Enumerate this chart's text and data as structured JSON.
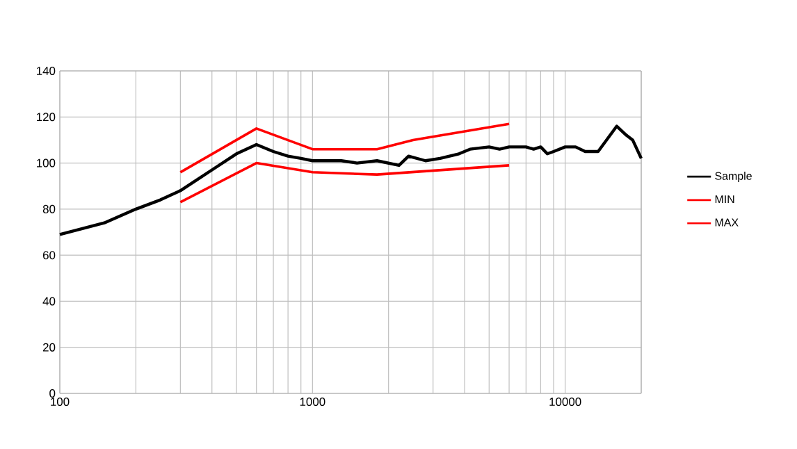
{
  "chart_data": {
    "type": "line",
    "log": "x",
    "grid": true,
    "legend": "right",
    "marker": "none",
    "line_style": "solid",
    "xlim": [
      100,
      20000
    ],
    "ylim": [
      0,
      140
    ],
    "xticks": [
      100,
      {
        "value": 200,
        "label": null
      },
      {
        "value": 300,
        "label": null
      },
      {
        "value": 400,
        "label": null
      },
      {
        "value": 500,
        "label": null
      },
      {
        "value": 600,
        "label": null
      },
      {
        "value": 700,
        "label": null
      },
      {
        "value": 800,
        "label": null
      },
      {
        "value": 900,
        "label": null
      },
      1000,
      {
        "value": 2000,
        "label": null
      },
      {
        "value": 3000,
        "label": null
      },
      {
        "value": 4000,
        "label": null
      },
      {
        "value": 5000,
        "label": null
      },
      {
        "value": 6000,
        "label": null
      },
      {
        "value": 7000,
        "label": null
      },
      {
        "value": 8000,
        "label": null
      },
      {
        "value": 9000,
        "label": null
      },
      10000,
      {
        "value": 20000,
        "label": null
      }
    ],
    "yticks": [
      0,
      20,
      40,
      60,
      80,
      100,
      120,
      140
    ],
    "series": [
      {
        "name": "Sample",
        "color": "#000000",
        "x": [
          100,
          150,
          200,
          250,
          300,
          400,
          500,
          600,
          700,
          800,
          900,
          1000,
          1300,
          1500,
          1800,
          2200,
          2400,
          2800,
          3200,
          3800,
          4200,
          5000,
          5500,
          6000,
          7000,
          7500,
          8000,
          8500,
          9000,
          10000,
          11000,
          12000,
          13500,
          16000,
          17500,
          18500,
          20000
        ],
        "values": [
          69,
          74,
          80,
          84,
          88,
          97,
          104,
          108,
          105,
          103,
          102,
          101,
          101,
          100,
          101,
          99,
          103,
          101,
          102,
          104,
          106,
          107,
          106,
          107,
          107,
          106,
          107,
          104,
          105,
          107,
          107,
          105,
          105,
          116,
          112,
          110,
          102
        ]
      },
      {
        "name": "MIN",
        "color": "#ff0000",
        "x": [
          300,
          600,
          1000,
          1800,
          6000
        ],
        "values": [
          83,
          100,
          96,
          95,
          99
        ]
      },
      {
        "name": "MAX",
        "color": "#ff0000",
        "x": [
          300,
          600,
          1000,
          1800,
          2500,
          6000
        ],
        "values": [
          96,
          115,
          106,
          106,
          110,
          117
        ]
      }
    ]
  }
}
